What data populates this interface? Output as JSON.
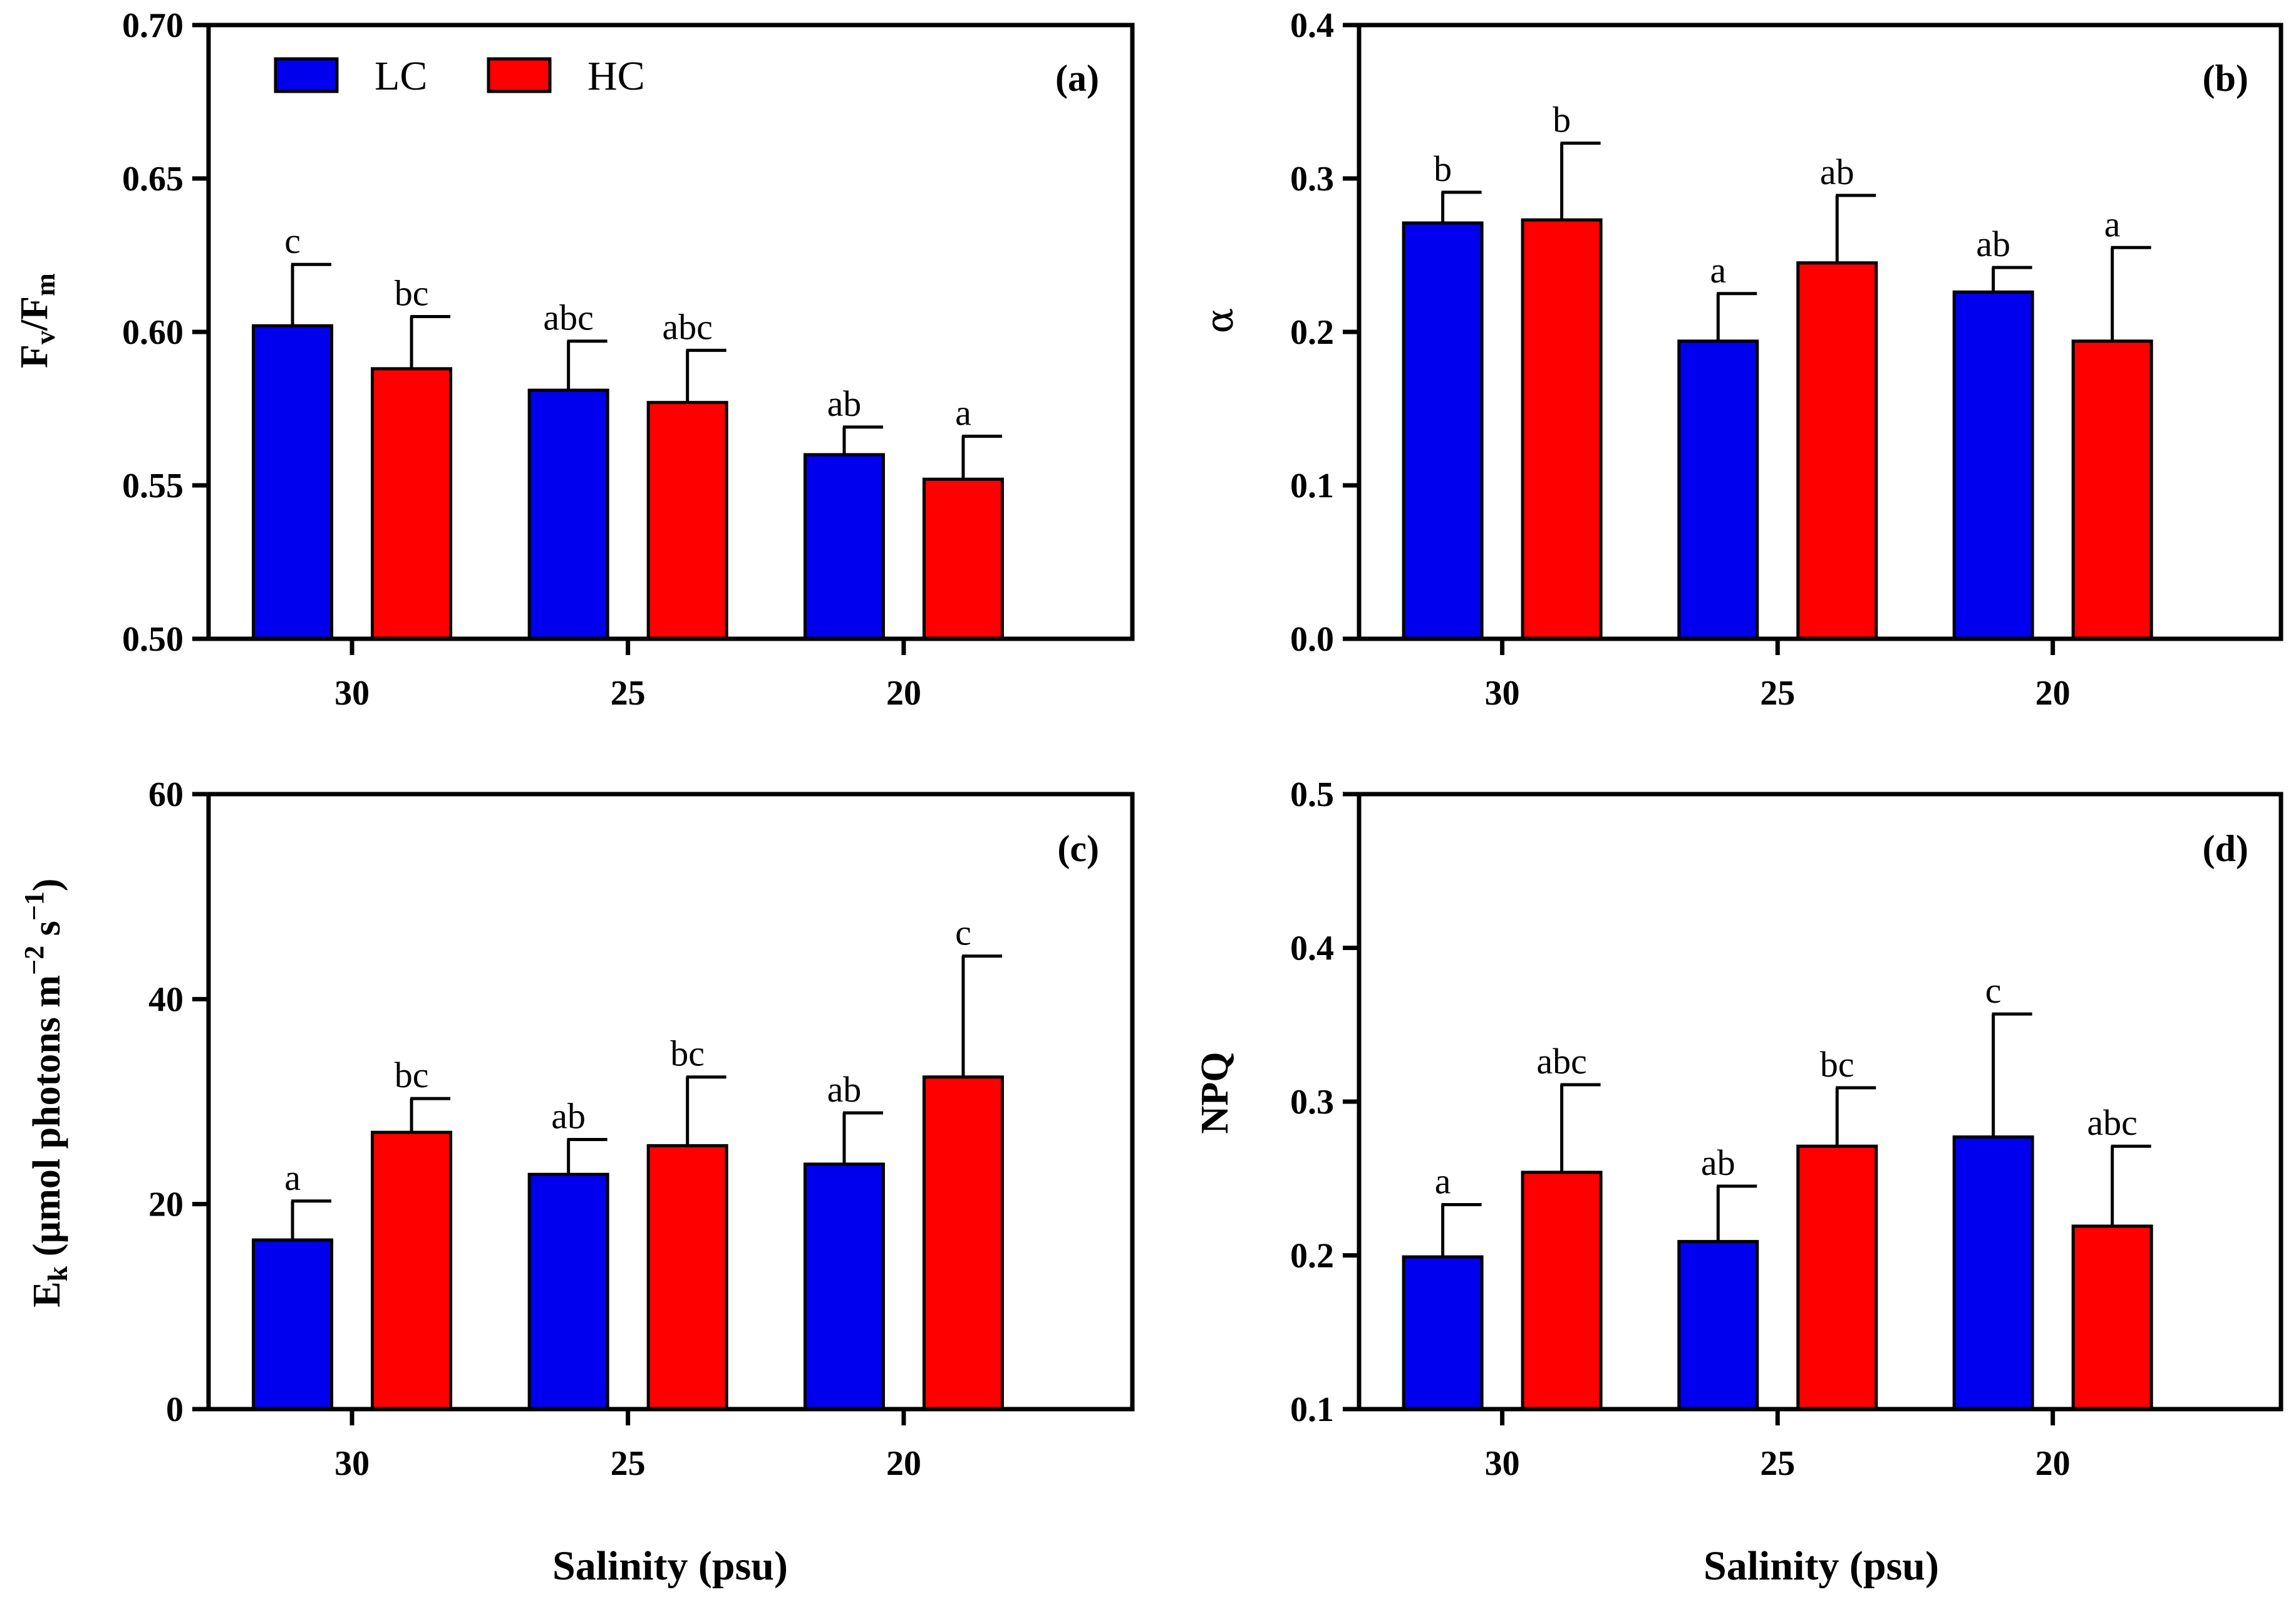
{
  "colors": {
    "LC": "#0000ee",
    "HC": "#ff0000",
    "axis": "#000000"
  },
  "legend": {
    "items": [
      {
        "key": "LC",
        "label": "LC"
      },
      {
        "key": "HC",
        "label": "HC"
      }
    ]
  },
  "xlabel_left": "Salinity (psu)",
  "xlabel_right": "Salinity (psu)",
  "chart_data": [
    {
      "type": "bar",
      "panel": "(a)",
      "ylabel_main": "F",
      "ylabel_sub1": "v",
      "ylabel_mid": "/F",
      "ylabel_sub2": "m",
      "categories": [
        "30",
        "25",
        "20"
      ],
      "ylim": [
        0.5,
        0.7
      ],
      "yticks": [
        "0.50",
        "0.55",
        "0.60",
        "0.65",
        "0.70"
      ],
      "series": [
        {
          "name": "LC",
          "values": [
            0.602,
            0.581,
            0.56
          ],
          "errors": [
            0.02,
            0.016,
            0.009
          ],
          "sig": [
            "c",
            "abc",
            "ab"
          ]
        },
        {
          "name": "HC",
          "values": [
            0.588,
            0.577,
            0.552
          ],
          "errors": [
            0.017,
            0.017,
            0.014
          ],
          "sig": [
            "bc",
            "abc",
            "a"
          ]
        }
      ]
    },
    {
      "type": "bar",
      "panel": "(b)",
      "ylabel_symbol": "α",
      "categories": [
        "30",
        "25",
        "20"
      ],
      "ylim": [
        0.0,
        0.4
      ],
      "yticks": [
        "0.0",
        "0.1",
        "0.2",
        "0.3",
        "0.4"
      ],
      "series": [
        {
          "name": "LC",
          "values": [
            0.271,
            0.194,
            0.226
          ],
          "errors": [
            0.02,
            0.031,
            0.016
          ],
          "sig": [
            "b",
            "a",
            "ab"
          ]
        },
        {
          "name": "HC",
          "values": [
            0.273,
            0.245,
            0.194
          ],
          "errors": [
            0.05,
            0.044,
            0.061
          ],
          "sig": [
            "b",
            "ab",
            "a"
          ]
        }
      ]
    },
    {
      "type": "bar",
      "panel": "(c)",
      "ylabel_main": "E",
      "ylabel_sub": "k",
      "ylabel_rest": " (µmol photons m",
      "ylabel_sup1": "−2",
      "ylabel_s": " s",
      "ylabel_sup2": "−1",
      "ylabel_close": ")",
      "categories": [
        "30",
        "25",
        "20"
      ],
      "ylim": [
        0,
        60
      ],
      "yticks": [
        "0",
        "20",
        "40",
        "60"
      ],
      "series": [
        {
          "name": "LC",
          "values": [
            16.5,
            22.9,
            23.9
          ],
          "errors": [
            3.8,
            3.4,
            5.0
          ],
          "sig": [
            "a",
            "ab",
            "ab"
          ]
        },
        {
          "name": "HC",
          "values": [
            27.0,
            25.7,
            32.4
          ],
          "errors": [
            3.3,
            6.7,
            11.8
          ],
          "sig": [
            "bc",
            "bc",
            "c"
          ]
        }
      ]
    },
    {
      "type": "bar",
      "panel": "(d)",
      "ylabel": "NPQ",
      "categories": [
        "30",
        "25",
        "20"
      ],
      "ylim": [
        0.1,
        0.5
      ],
      "yticks": [
        "0.1",
        "0.2",
        "0.3",
        "0.4",
        "0.5"
      ],
      "series": [
        {
          "name": "LC",
          "values": [
            0.199,
            0.209,
            0.277
          ],
          "errors": [
            0.034,
            0.036,
            0.08
          ],
          "sig": [
            "a",
            "ab",
            "c"
          ]
        },
        {
          "name": "HC",
          "values": [
            0.254,
            0.271,
            0.219
          ],
          "errors": [
            0.057,
            0.038,
            0.052
          ],
          "sig": [
            "abc",
            "bc",
            "abc"
          ]
        }
      ]
    }
  ]
}
